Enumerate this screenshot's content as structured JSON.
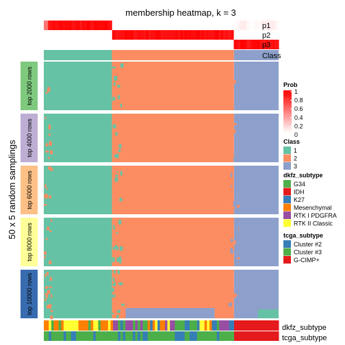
{
  "chart_data": {
    "type": "heatmap",
    "title": "membership heatmap, k = 3",
    "ylabel": "50 x 5 random samplings",
    "membership_rows": [
      "p1",
      "p2",
      "p3"
    ],
    "class_row_label": "Class",
    "bottom_row_labels": [
      "dkfz_subtype",
      "tcga_subtype"
    ],
    "panels": [
      {
        "label": "top 2000 rows"
      },
      {
        "label": "top 4000 rows"
      },
      {
        "label": "top 6000 rows"
      },
      {
        "label": "top 8000 rows"
      },
      {
        "label": "top 10000 rows"
      }
    ],
    "class_fractions": [
      0.29,
      0.52,
      0.19
    ],
    "legends": {
      "prob": {
        "title": "Prob",
        "ticks": [
          "1",
          "0.8",
          "0.6",
          "0.4",
          "0.2",
          "0"
        ],
        "range": [
          0,
          1
        ]
      },
      "class": {
        "title": "Class",
        "items": [
          {
            "label": "1",
            "color": "#66C2A5"
          },
          {
            "label": "2",
            "color": "#FC8D62"
          },
          {
            "label": "3",
            "color": "#8DA0CB"
          }
        ]
      },
      "dkfz_subtype": {
        "title": "dkfz_subtype",
        "items": [
          {
            "label": "G34",
            "color": "#4DAF4A"
          },
          {
            "label": "IDH",
            "color": "#E41A1C"
          },
          {
            "label": "K27",
            "color": "#377EB8"
          },
          {
            "label": "Mesenchymal",
            "color": "#FF7F00"
          },
          {
            "label": "RTK I PDGFRA",
            "color": "#984EA3"
          },
          {
            "label": "RTK II Classic",
            "color": "#FFFF33"
          }
        ]
      },
      "tcga_subtype": {
        "title": "tcga_subtype",
        "items": [
          {
            "label": "Cluster #2",
            "color": "#377EB8"
          },
          {
            "label": "Cluster #3",
            "color": "#4DAF4A"
          },
          {
            "label": "G-CIMP+",
            "color": "#E41A1C"
          }
        ]
      }
    },
    "panel_colors": [
      "#7FC97F",
      "#BEAED4",
      "#FDC086",
      "#FFFF99",
      "#386CB0"
    ]
  }
}
